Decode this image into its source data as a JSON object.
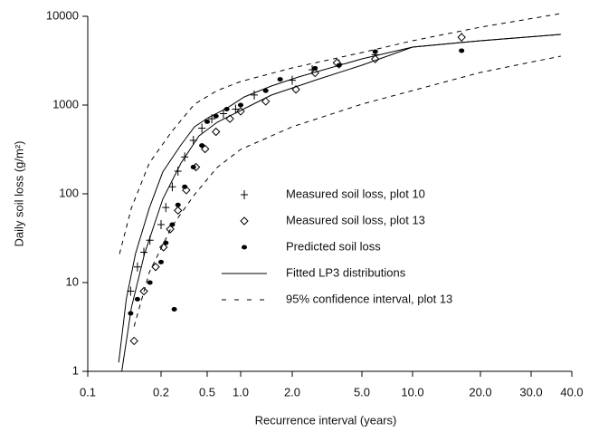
{
  "chart_data": {
    "type": "scatter-line",
    "xlabel": "Recurrence interval (years)",
    "ylabel": "Daily soil loss (g/m²)",
    "xlim": [
      0.1,
      40
    ],
    "ylim": [
      1,
      10000
    ],
    "xscale": "log",
    "yscale": "log",
    "xticks": [
      0.1,
      0.2,
      0.5,
      {
        "value": 1,
        "label": "1.0"
      },
      {
        "value": 2,
        "label": "2.0"
      },
      {
        "value": 5,
        "label": "5.0"
      },
      {
        "value": 10,
        "label": "10.0"
      },
      {
        "value": 20,
        "label": "20.0"
      },
      {
        "value": 30,
        "label": "30.0"
      },
      {
        "value": 40,
        "label": "40.0"
      }
    ],
    "yticks": [
      1,
      10,
      100,
      1000,
      10000
    ],
    "series": [
      {
        "name": "Measured soil loss, plot 10",
        "kind": "scatter",
        "marker": "plus",
        "color": "#000",
        "x": [
          0.15,
          0.16,
          0.17,
          0.18,
          0.2,
          0.22,
          0.25,
          0.28,
          0.32,
          0.38,
          0.45,
          0.55,
          0.7,
          0.9,
          1.2,
          2.0,
          2.6,
          3.7,
          6,
          16.5
        ],
        "values": [
          8,
          15,
          22,
          30,
          45,
          70,
          120,
          180,
          260,
          400,
          550,
          700,
          800,
          900,
          1300,
          1900,
          2500,
          2900,
          3700,
          5800
        ]
      },
      {
        "name": "Measured soil loss, plot 13",
        "kind": "scatter",
        "marker": "diamond",
        "color": "#000",
        "x": [
          0.155,
          0.17,
          0.19,
          0.21,
          0.24,
          0.28,
          0.33,
          0.4,
          0.48,
          0.6,
          0.8,
          1.0,
          1.4,
          2.1,
          2.7,
          3.6,
          6,
          16.5
        ],
        "values": [
          2.2,
          8,
          15,
          25,
          40,
          65,
          110,
          200,
          320,
          500,
          700,
          850,
          1100,
          1500,
          2300,
          3000,
          3300,
          5800
        ]
      },
      {
        "name": "Predicted soil loss",
        "kind": "scatter",
        "marker": "dot",
        "color": "#000",
        "x": [
          0.15,
          0.16,
          0.18,
          0.2,
          0.22,
          0.25,
          0.26,
          0.28,
          0.32,
          0.38,
          0.45,
          0.5,
          0.6,
          0.75,
          1.0,
          1.4,
          1.7,
          2.7,
          3.7,
          6,
          16.5
        ],
        "values": [
          4.5,
          6.5,
          10,
          17,
          28,
          45,
          5,
          75,
          120,
          200,
          350,
          650,
          750,
          900,
          1000,
          1450,
          1950,
          2600,
          2800,
          4000,
          4100
        ]
      },
      {
        "name": "Fitted LP3 distributions",
        "kind": "line",
        "dash": false,
        "color": "#000",
        "x": [
          0.134,
          0.144,
          0.157,
          0.179,
          0.207,
          0.297,
          0.389,
          0.509,
          0.74,
          1.05,
          1.51,
          2.17,
          5,
          10,
          20,
          37
        ],
        "values": [
          1.26,
          6.5,
          21,
          69,
          176,
          356,
          569,
          719,
          910,
          1236,
          1638,
          2070,
          3313,
          4500,
          5300,
          6250
        ]
      },
      {
        "kind": "line",
        "dash": false,
        "color": "#000",
        "x": [
          0.138,
          0.151,
          0.171,
          0.207,
          0.297,
          0.425,
          0.614,
          1.0,
          1.51,
          2.76,
          5,
          10,
          20,
          37
        ],
        "values": [
          1,
          5.2,
          21,
          87,
          222,
          450,
          640,
          869,
          1295,
          1930,
          2810,
          4500,
          5300,
          6250
        ]
      },
      {
        "name": "95% confidence interval, plot 13",
        "kind": "line",
        "dash": true,
        "color": "#000",
        "x": [
          0.135,
          0.151,
          0.179,
          0.248,
          0.389,
          0.614,
          1.0,
          2,
          5,
          10,
          20,
          37
        ],
        "values": [
          21,
          69,
          222,
          506,
          1024,
          1456,
          1843,
          2620,
          3910,
          5300,
          7550,
          10740
        ]
      },
      {
        "kind": "line",
        "dash": true,
        "color": "#000",
        "x": [
          0.155,
          0.179,
          0.248,
          0.389,
          0.614,
          1.0,
          2,
          5,
          10,
          20,
          37
        ],
        "values": [
          3.2,
          13,
          43,
          98,
          198,
          316,
          569,
          1024,
          1456,
          2330,
          3556
        ]
      }
    ]
  }
}
